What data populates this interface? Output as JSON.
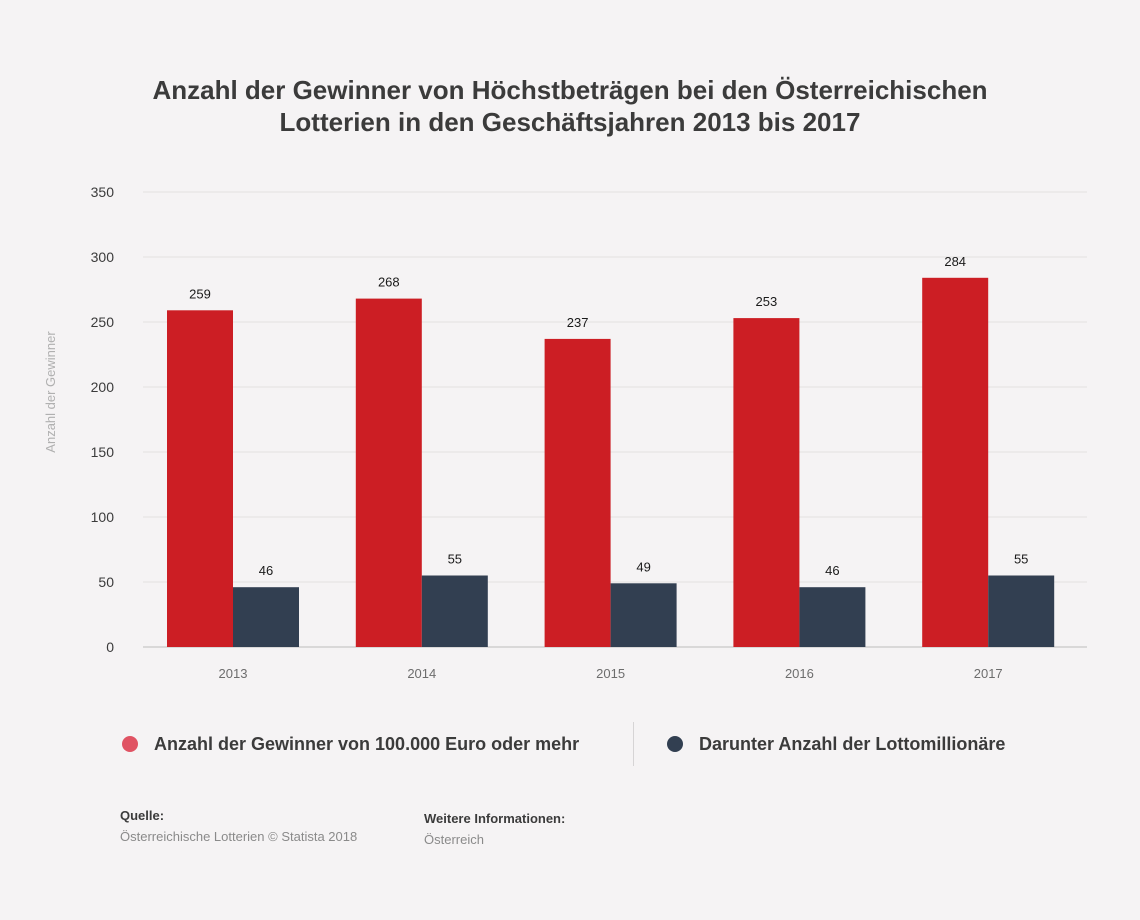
{
  "title_line1": "Anzahl der Gewinner von Höchstbeträgen bei den Österreichischen",
  "title_line2": "Lotterien in den Geschäftsjahren 2013 bis 2017",
  "chart_data": {
    "type": "bar",
    "title": "Anzahl der Gewinner von Höchstbeträgen bei den Österreichischen Lotterien in den Geschäftsjahren 2013 bis 2017",
    "xlabel": "",
    "ylabel": "Anzahl der Gewinner",
    "ylim": [
      0,
      350
    ],
    "yticks": [
      0,
      50,
      100,
      150,
      200,
      250,
      300,
      350
    ],
    "categories": [
      "2013",
      "2014",
      "2015",
      "2016",
      "2017"
    ],
    "series": [
      {
        "name": "Anzahl der Gewinner von 100.000 Euro oder mehr",
        "color": "#cc1e24",
        "values": [
          259,
          268,
          237,
          253,
          284
        ]
      },
      {
        "name": "Darunter Anzahl der Lottomillionäre",
        "color": "#323f51",
        "values": [
          46,
          55,
          49,
          46,
          55
        ]
      }
    ],
    "grid": true,
    "legend_position": "bottom"
  },
  "legend": {
    "item1_color": "#e05363",
    "item2_color": "#323f51"
  },
  "footer": {
    "source_label": "Quelle:",
    "source_text": "Österreichische Lotterien  © Statista 2018",
    "info_label": "Weitere Informationen:",
    "info_text": "Österreich"
  }
}
